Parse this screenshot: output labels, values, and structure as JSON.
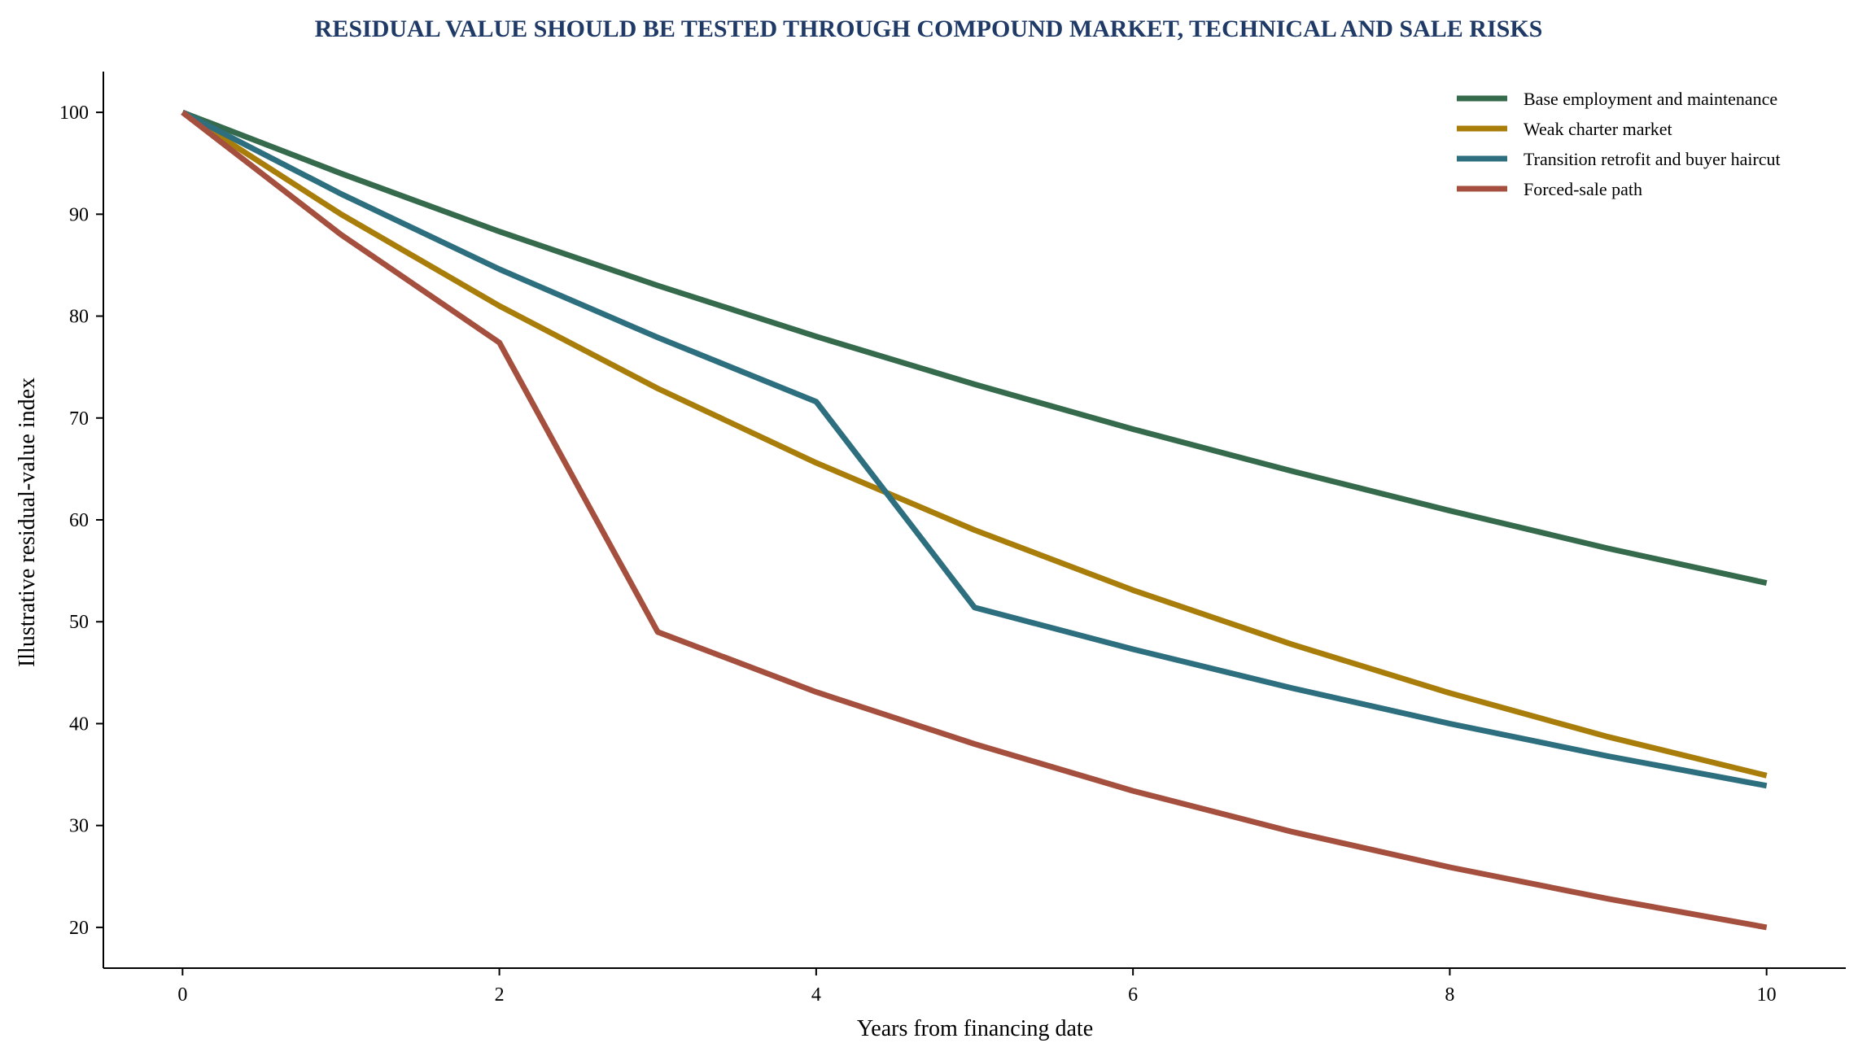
{
  "chart_data": {
    "type": "line",
    "title": "RESIDUAL VALUE SHOULD BE TESTED THROUGH COMPOUND MARKET, TECHNICAL AND SALE RISKS",
    "xlabel": "Years from financing date",
    "ylabel": "Illustrative residual-value index",
    "x": [
      0,
      1,
      2,
      3,
      4,
      5,
      6,
      7,
      8,
      9,
      10
    ],
    "xlim": [
      -0.5,
      10.5
    ],
    "ylim": [
      16,
      104
    ],
    "xticks": [
      0,
      2,
      4,
      6,
      8,
      10
    ],
    "yticks": [
      20,
      30,
      40,
      50,
      60,
      70,
      80,
      90,
      100
    ],
    "grid": false,
    "legend_position": "top-right",
    "series": [
      {
        "name": "Base employment and maintenance",
        "color": "#356b4c",
        "values": [
          100,
          94.0,
          88.3,
          83.0,
          78.0,
          73.3,
          68.9,
          64.8,
          60.9,
          57.2,
          53.8
        ]
      },
      {
        "name": "Weak charter market",
        "color": "#a87d0a",
        "values": [
          100,
          90.0,
          81.0,
          72.9,
          65.6,
          59.0,
          53.1,
          47.8,
          43.0,
          38.7,
          34.9
        ]
      },
      {
        "name": "Transition retrofit and buyer haircut",
        "color": "#2d6f7e",
        "values": [
          100,
          92.0,
          84.6,
          77.9,
          71.6,
          51.4,
          47.3,
          43.5,
          40.0,
          36.8,
          33.9
        ]
      },
      {
        "name": "Forced-sale path",
        "color": "#a5503f",
        "values": [
          100,
          88.0,
          77.4,
          49.0,
          43.1,
          38.0,
          33.4,
          29.4,
          25.9,
          22.8,
          20.0
        ]
      }
    ]
  }
}
